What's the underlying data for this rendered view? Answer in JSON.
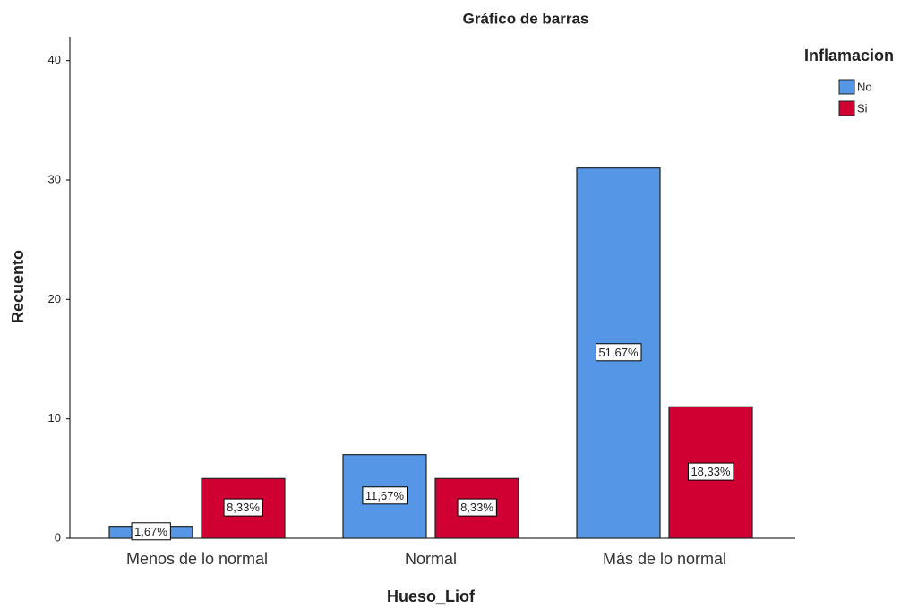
{
  "chart_data": {
    "type": "bar",
    "title": "Gráfico de barras",
    "x_label": "Hueso_Liof",
    "y_label": "Recuento",
    "categories": [
      "Menos de lo normal",
      "Normal",
      "Más de lo normal"
    ],
    "legend_title": "Inflamacion",
    "legend_position": "right",
    "series": [
      {
        "name": "No",
        "color": "#5596e6",
        "values": [
          1,
          7,
          31
        ],
        "percent_labels": [
          "1,67%",
          "11,67%",
          "51,67%"
        ]
      },
      {
        "name": "Si",
        "color": "#d10032",
        "values": [
          5,
          5,
          11
        ],
        "percent_labels": [
          "8,33%",
          "8,33%",
          "18,33%"
        ]
      }
    ],
    "ylim": [
      0,
      42
    ],
    "yticks": [
      0,
      10,
      20,
      30,
      40
    ],
    "grid": false
  }
}
